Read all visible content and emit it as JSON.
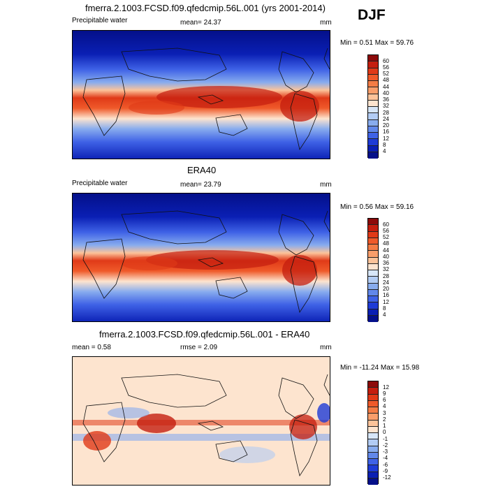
{
  "season": "DJF",
  "panels": [
    {
      "title": "fmerra.2.1003.FCSD.f09.qfedcmip.56L.001 (yrs 2001-2014)",
      "left_label": "Precipitable water",
      "center_label": "mean=  24.37",
      "units": "mm",
      "minmax": "Min =   0.51 Max =  59.76",
      "colorbar": {
        "labels": [
          "60",
          "56",
          "52",
          "48",
          "44",
          "40",
          "36",
          "32",
          "28",
          "24",
          "20",
          "16",
          "12",
          "8",
          "4"
        ],
        "colors": [
          "#8c0a0a",
          "#c41e0f",
          "#e03a18",
          "#ef5a2a",
          "#f47c45",
          "#f99e6b",
          "#fcc39a",
          "#fde4cf",
          "#d7e6f8",
          "#b2ccf4",
          "#88acee",
          "#6288ea",
          "#3f62e6",
          "#1e3bd6",
          "#0a1fb4",
          "#04108a"
        ]
      }
    },
    {
      "title": "ERA40",
      "left_label": "Precipitable water",
      "center_label": "mean=  23.79",
      "units": "mm",
      "minmax": "Min =   0.56 Max =  59.16",
      "colorbar": {
        "labels": [
          "60",
          "56",
          "52",
          "48",
          "44",
          "40",
          "36",
          "32",
          "28",
          "24",
          "20",
          "16",
          "12",
          "8",
          "4"
        ],
        "colors": [
          "#8c0a0a",
          "#c41e0f",
          "#e03a18",
          "#ef5a2a",
          "#f47c45",
          "#f99e6b",
          "#fcc39a",
          "#fde4cf",
          "#d7e6f8",
          "#b2ccf4",
          "#88acee",
          "#6288ea",
          "#3f62e6",
          "#1e3bd6",
          "#0a1fb4",
          "#04108a"
        ]
      }
    },
    {
      "title": "fmerra.2.1003.FCSD.f09.qfedcmip.56L.001 - ERA40",
      "left_label": "mean =   0.58",
      "center_label": "rmse =   2.09",
      "units": "mm",
      "minmax": "Min = -11.24 Max =  15.98",
      "colorbar": {
        "labels": [
          "12",
          "9",
          "6",
          "4",
          "3",
          "2",
          "1",
          "0",
          "-1",
          "-2",
          "-3",
          "-4",
          "-6",
          "-9",
          "-12"
        ],
        "colors": [
          "#8c0a0a",
          "#c41e0f",
          "#e03a18",
          "#ef5a2a",
          "#f47c45",
          "#f99e6b",
          "#fcc39a",
          "#fde4cf",
          "#d7e6f8",
          "#b2ccf4",
          "#88acee",
          "#6288ea",
          "#3f62e6",
          "#1e3bd6",
          "#0a1fb4",
          "#04108a"
        ]
      }
    }
  ]
}
